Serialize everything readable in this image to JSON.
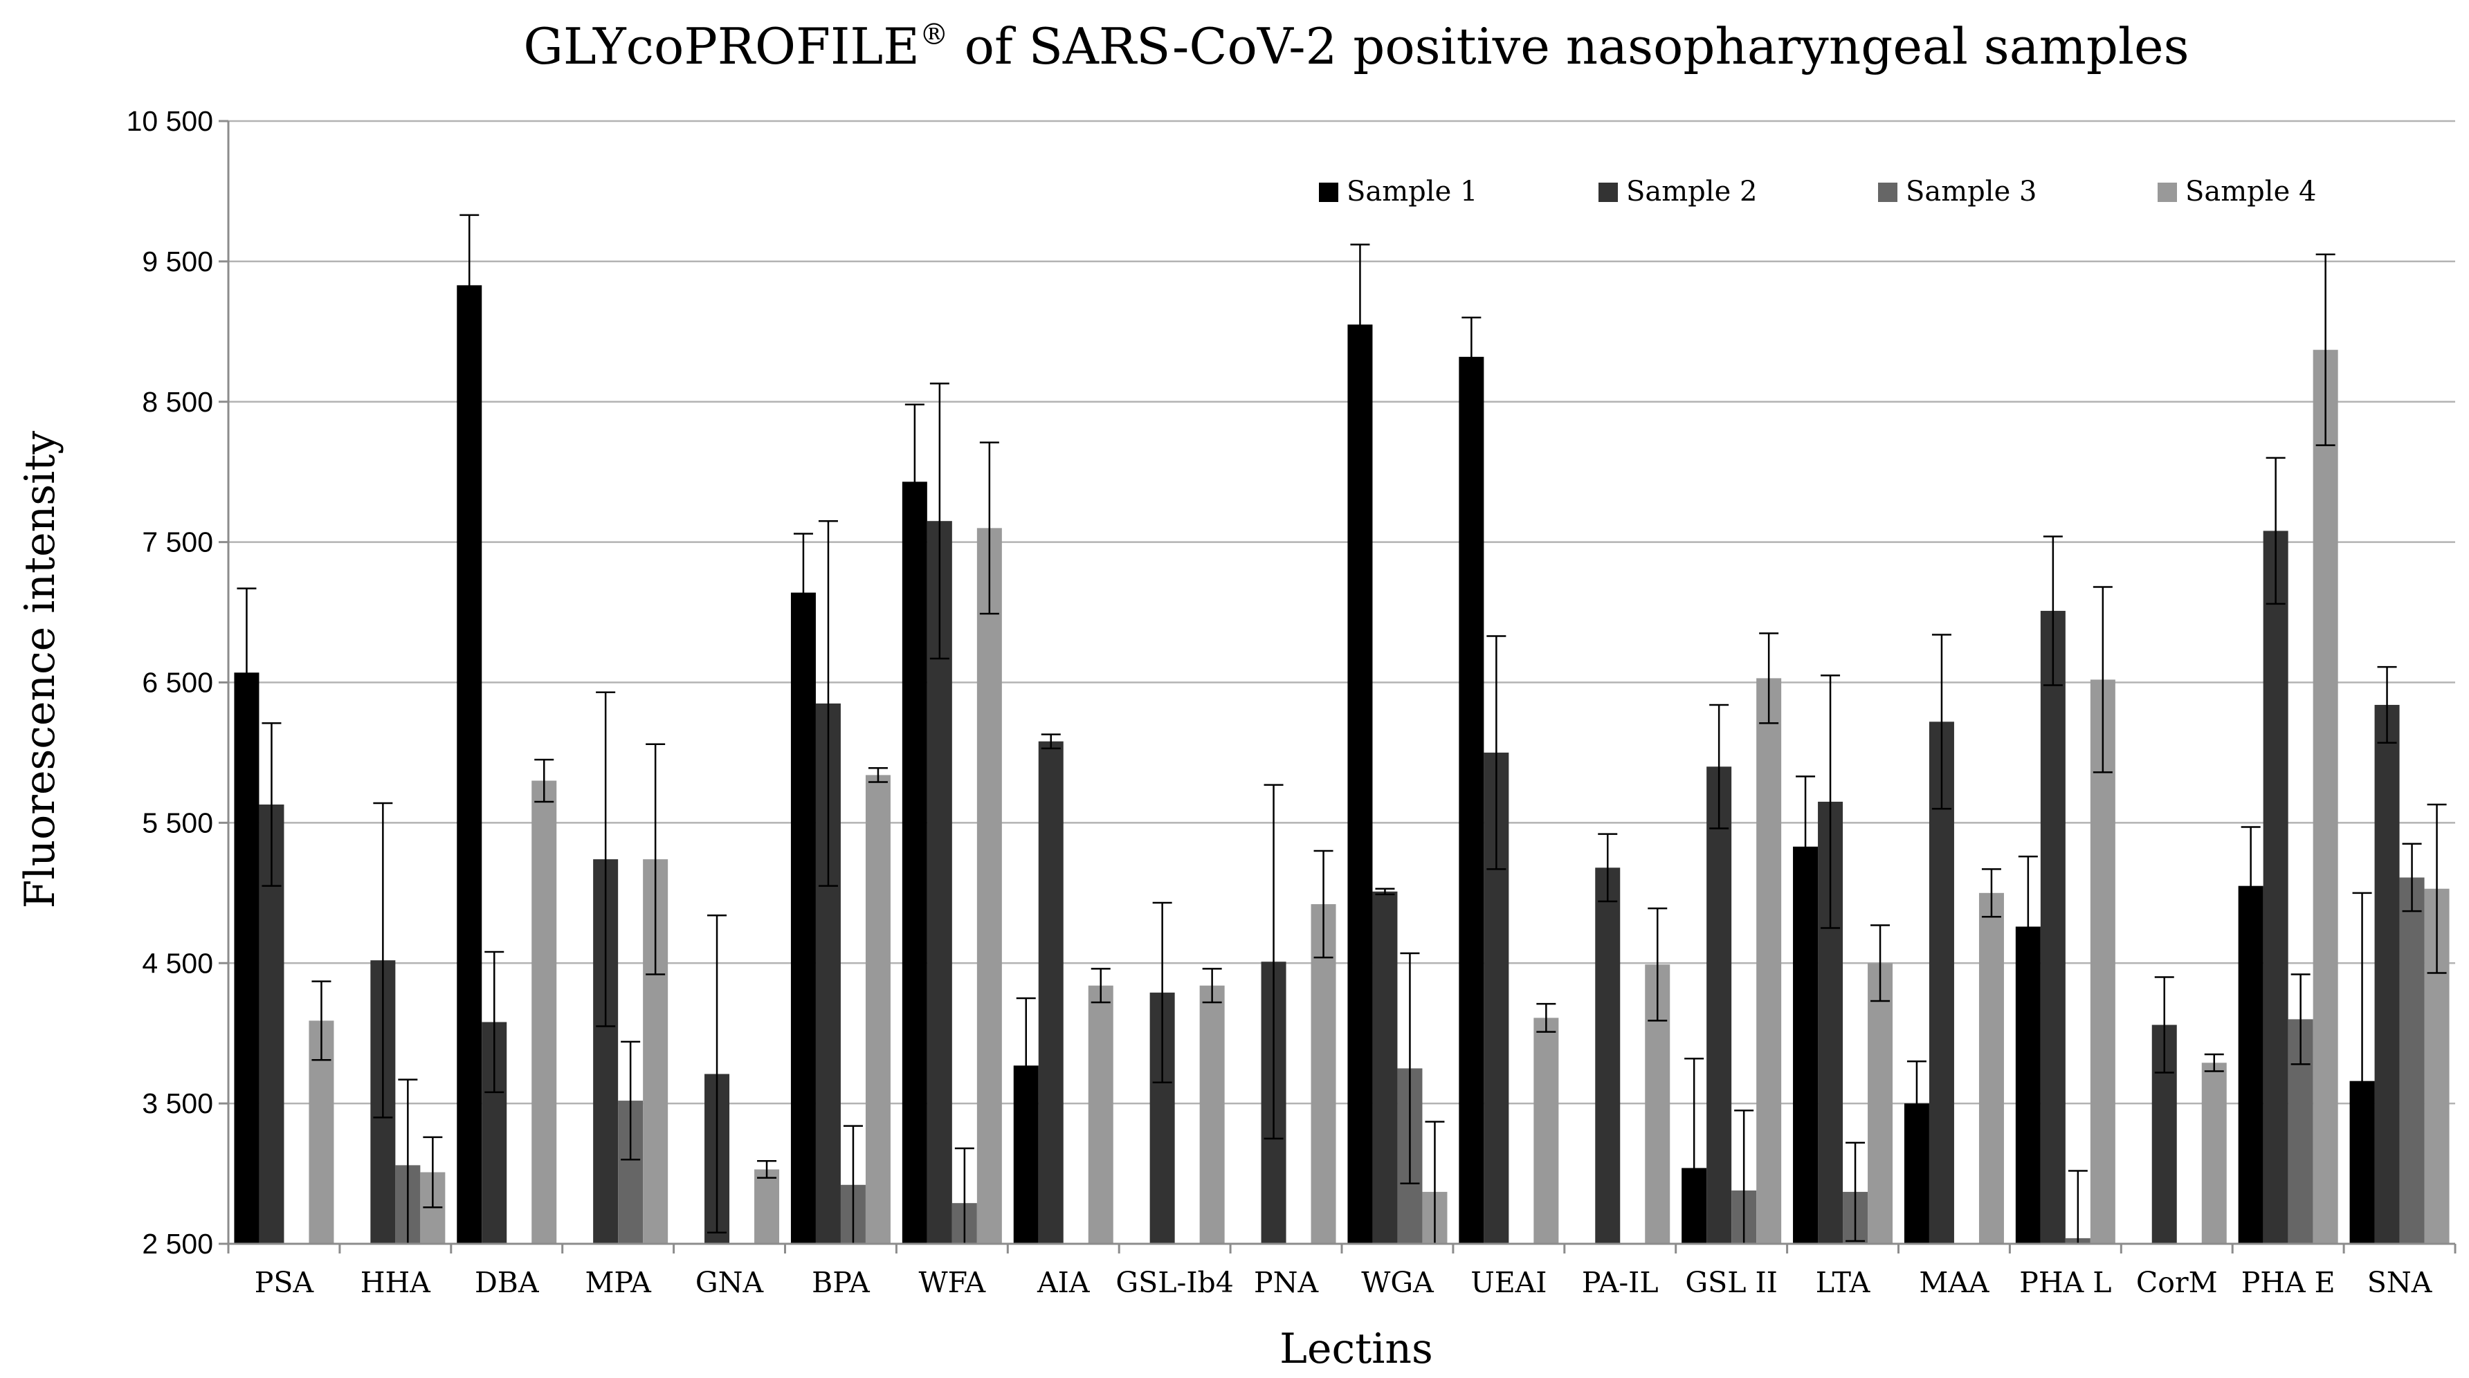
{
  "chart_data": {
    "type": "bar",
    "title": "GLYcoPROFILE",
    "title_superscript": "®",
    "title_rest": " of SARS-CoV-2 positive nasopharyngeal samples",
    "xlabel": "Lectins",
    "ylabel": "Fluorescence intensity",
    "ylim": [
      2500,
      10500
    ],
    "yticks": [
      2500,
      3500,
      4500,
      5500,
      6500,
      7500,
      8500,
      9500,
      10500
    ],
    "ytick_labels": [
      "2 500",
      "3 500",
      "4 500",
      "5 500",
      "6 500",
      "7 500",
      "8 500",
      "9 500",
      "10 500"
    ],
    "grid": true,
    "legend_position": "top-right",
    "categories": [
      "PSA",
      "HHA",
      "DBA",
      "MPA",
      "GNA",
      "BPA",
      "WFA",
      "AIA",
      "GSL-Ib4",
      "PNA",
      "WGA",
      "UEAI",
      "PA-IL",
      "GSL II",
      "LTA",
      "MAA",
      "PHA L",
      "CorM",
      "PHA E",
      "SNA"
    ],
    "series": [
      {
        "name": "Sample 1",
        "color": "#000000",
        "values": [
          6570,
          null,
          9330,
          null,
          null,
          7140,
          7930,
          3770,
          null,
          null,
          9050,
          8820,
          null,
          3040,
          5330,
          3500,
          4760,
          null,
          5050,
          3660
        ],
        "errors": [
          600,
          null,
          500,
          null,
          null,
          420,
          550,
          480,
          null,
          null,
          570,
          280,
          null,
          780,
          500,
          300,
          500,
          null,
          420,
          1340
        ]
      },
      {
        "name": "Sample 2",
        "color": "#333333",
        "values": [
          5630,
          4520,
          4080,
          5240,
          3710,
          6350,
          7650,
          6080,
          4290,
          4510,
          5010,
          6000,
          5180,
          5900,
          5650,
          6220,
          7010,
          4060,
          7580,
          6340
        ],
        "errors": [
          580,
          1120,
          500,
          1190,
          1130,
          1300,
          980,
          50,
          640,
          1260,
          20,
          830,
          240,
          440,
          900,
          620,
          530,
          340,
          520,
          270
        ]
      },
      {
        "name": "Sample 3",
        "color": "#666666",
        "values": [
          null,
          3060,
          null,
          3520,
          null,
          2920,
          2790,
          null,
          null,
          null,
          3750,
          null,
          null,
          2880,
          2870,
          null,
          2540,
          null,
          4100,
          5110
        ],
        "errors": [
          null,
          610,
          null,
          420,
          null,
          420,
          390,
          null,
          null,
          null,
          820,
          null,
          null,
          570,
          350,
          null,
          480,
          null,
          320,
          240
        ]
      },
      {
        "name": "Sample 4",
        "color": "#999999",
        "values": [
          4090,
          3010,
          5800,
          5240,
          3030,
          5840,
          7600,
          4340,
          4340,
          4920,
          2870,
          4110,
          4490,
          6530,
          4500,
          5000,
          6520,
          3790,
          8870,
          5030
        ],
        "errors": [
          280,
          250,
          150,
          820,
          60,
          50,
          610,
          120,
          120,
          380,
          500,
          100,
          400,
          320,
          270,
          170,
          660,
          60,
          680,
          600
        ]
      }
    ]
  }
}
